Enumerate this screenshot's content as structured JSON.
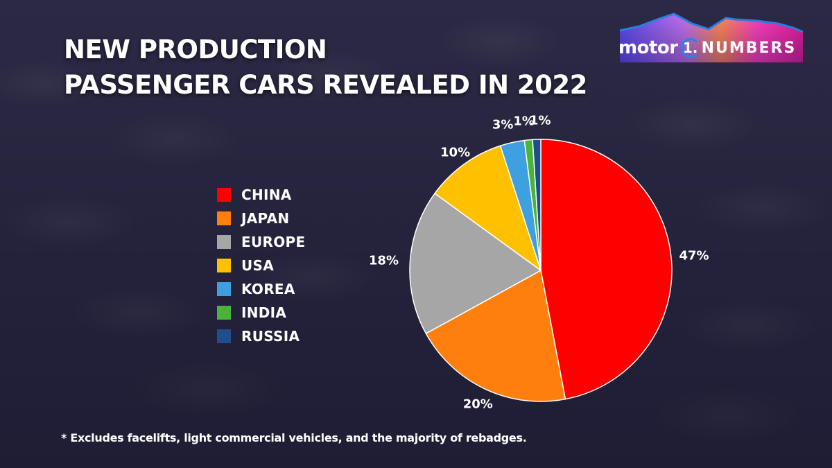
{
  "header": {
    "title_line1": "NEW PRODUCTION",
    "title_line2": "PASSENGER CARS REVEALED IN 2022"
  },
  "logo": {
    "motor": "motor",
    "one": "1.",
    "numbers": "NUMBERS"
  },
  "footnote": "* Excludes facelifts, light commercial vehicles, and the majority of rebadges.",
  "chart_data": {
    "type": "pie",
    "title": "NEW PRODUCTION PASSENGER CARS REVEALED IN 2022",
    "categories": [
      "CHINA",
      "JAPAN",
      "EUROPE",
      "USA",
      "KOREA",
      "INDIA",
      "RUSSIA"
    ],
    "values": [
      47,
      20,
      18,
      10,
      3,
      1,
      1
    ],
    "labels": [
      "47%",
      "20%",
      "18%",
      "10%",
      "3%",
      "1%",
      "1%"
    ],
    "colors": [
      "#ff0000",
      "#ff7f0e",
      "#a6a6a6",
      "#ffc000",
      "#3fa0e0",
      "#4bb33a",
      "#1f4e8c"
    ],
    "unit": "%",
    "start_angle": "12 o'clock",
    "direction": "clockwise",
    "legend_position": "left",
    "annotation": "* Excludes facelifts, light commercial vehicles, and the majority of rebadges."
  }
}
